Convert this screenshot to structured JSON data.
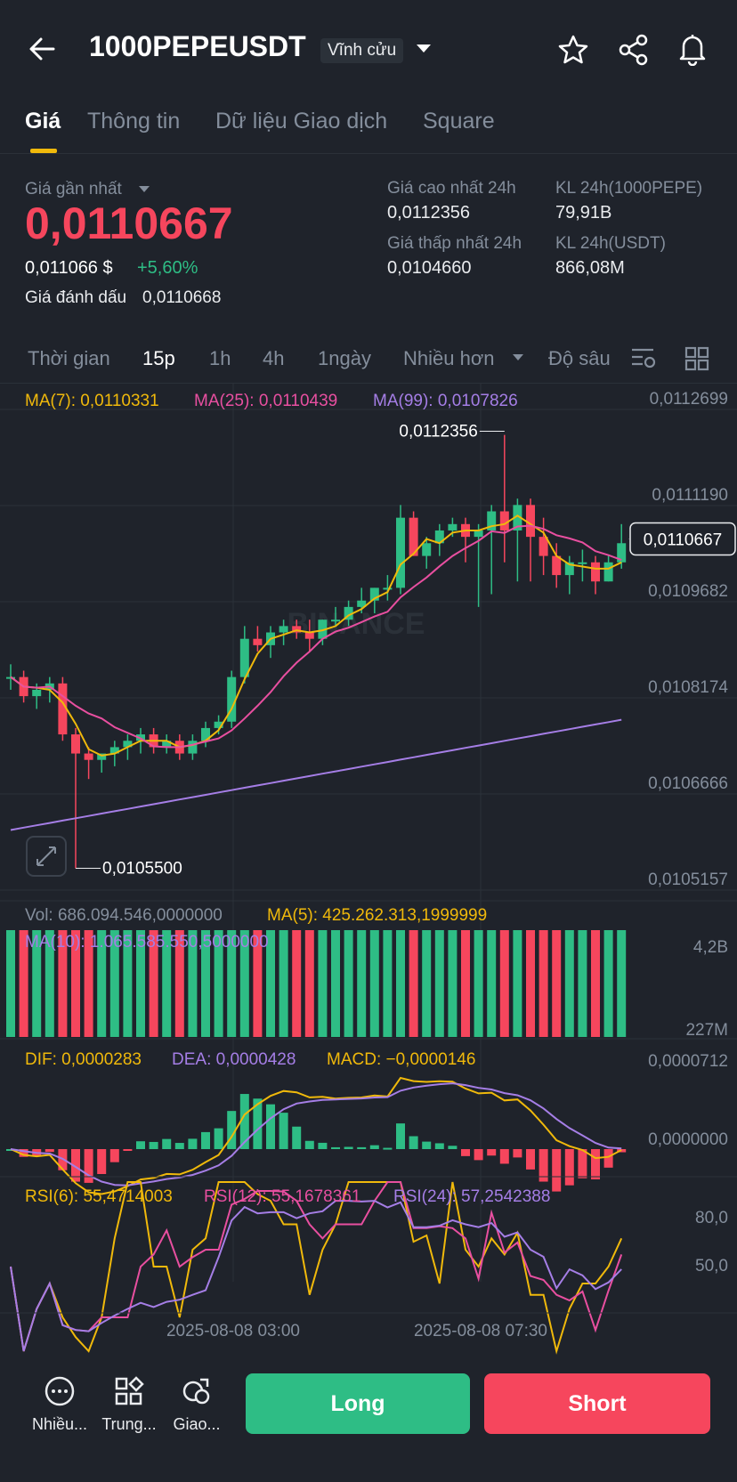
{
  "header": {
    "title": "1000PEPEUSDT",
    "badge": "Vĩnh cửu",
    "icons": [
      "back-arrow-icon",
      "chevron-down-icon",
      "star-icon",
      "share-icon",
      "bell-icon"
    ]
  },
  "tabs": [
    "Giá",
    "Thông tin",
    "Dữ liệu Giao dịch",
    "Square"
  ],
  "price": {
    "last_label": "Giá gần nhất",
    "last": "0,0110667",
    "usd": "0,011066 $",
    "change": "+5,60%",
    "mark_label": "Giá đánh dấu",
    "mark": "0,0110668",
    "high_label": "Giá cao nhất 24h",
    "high": "0,0112356",
    "low_label": "Giá thấp nhất 24h",
    "low": "0,0104660",
    "vol_base_label": "KL 24h(1000PEPE)",
    "vol_base": "79,91B",
    "vol_quote_label": "KL 24h(USDT)",
    "vol_quote": "866,08M"
  },
  "timeframes": [
    "Thời gian",
    "15p",
    "1h",
    "4h",
    "1ngày",
    "Nhiều hơn",
    "Độ sâu"
  ],
  "indicators": {
    "ma7": "MA(7): 0,0110331",
    "ma25": "MA(25): 0,0110439",
    "ma99": "MA(99): 0,0107826",
    "vol": "Vol: 686.094.546,0000000",
    "vol_ma5": "MA(5): 425.262.313,1999999",
    "vol_ma10": "MA(10): 1.065.585.550,5000000",
    "dif": "DIF: 0,0000283",
    "dea": "DEA: 0,0000428",
    "macd": "MACD: −0,0000146",
    "rsi6": "RSI(6): 55,4714003",
    "rsi12": "RSI(12): 55,1678361",
    "rsi24": "RSI(24): 57,2542388"
  },
  "colors": {
    "up": "#2ebd85",
    "down": "#f6465d",
    "accent": "#f0b90b",
    "bg": "#1f232b"
  },
  "chart_data": {
    "type": "candlestick",
    "y_ticks": [
      "0,0112699",
      "0,0111190",
      "0,0109682",
      "0,0108174",
      "0,0106666",
      "0,0105157"
    ],
    "ylim": [
      0.0105157,
      0.0112699
    ],
    "high_label": "0,0112356",
    "low_label": "0,0105500",
    "current_price_label": "0,0110667",
    "x_ticks": [
      "2025-08-08 03:00",
      "2025-08-08 07:30"
    ],
    "watermark": "BINANCE",
    "candles": [
      [
        0.01085,
        0.01087,
        0.01083,
        0.01085
      ],
      [
        0.01085,
        0.01086,
        0.01081,
        0.01082
      ],
      [
        0.01082,
        0.01084,
        0.0108,
        0.01083
      ],
      [
        0.01083,
        0.01085,
        0.01081,
        0.01084
      ],
      [
        0.01084,
        0.01085,
        0.01075,
        0.01076
      ],
      [
        0.01076,
        0.01077,
        0.01055,
        0.01073
      ],
      [
        0.01073,
        0.01074,
        0.01069,
        0.01072
      ],
      [
        0.01072,
        0.01073,
        0.0107,
        0.01073
      ],
      [
        0.01073,
        0.01075,
        0.01071,
        0.01074
      ],
      [
        0.01074,
        0.01076,
        0.01072,
        0.01075
      ],
      [
        0.01075,
        0.01077,
        0.01073,
        0.01076
      ],
      [
        0.01076,
        0.01077,
        0.01073,
        0.01074
      ],
      [
        0.01074,
        0.01076,
        0.01073,
        0.01075
      ],
      [
        0.01075,
        0.01076,
        0.01072,
        0.01073
      ],
      [
        0.01073,
        0.01076,
        0.01072,
        0.01075
      ],
      [
        0.01075,
        0.01078,
        0.01074,
        0.01077
      ],
      [
        0.01077,
        0.01079,
        0.01076,
        0.01078
      ],
      [
        0.01078,
        0.01086,
        0.01077,
        0.01085
      ],
      [
        0.01085,
        0.01093,
        0.01084,
        0.01091
      ],
      [
        0.01091,
        0.01093,
        0.01089,
        0.0109
      ],
      [
        0.0109,
        0.01093,
        0.01088,
        0.01092
      ],
      [
        0.01092,
        0.01094,
        0.0109,
        0.01093
      ],
      [
        0.01093,
        0.01094,
        0.01091,
        0.01092
      ],
      [
        0.01092,
        0.01094,
        0.01089,
        0.01091
      ],
      [
        0.01091,
        0.01094,
        0.0109,
        0.01094
      ],
      [
        0.01094,
        0.01096,
        0.01093,
        0.01094
      ],
      [
        0.01094,
        0.01097,
        0.01093,
        0.01096
      ],
      [
        0.01096,
        0.01099,
        0.01095,
        0.01097
      ],
      [
        0.01097,
        0.01099,
        0.01095,
        0.01099
      ],
      [
        0.01099,
        0.01101,
        0.01097,
        0.01099
      ],
      [
        0.01099,
        0.01112,
        0.01098,
        0.0111
      ],
      [
        0.0111,
        0.01111,
        0.01104,
        0.01104
      ],
      [
        0.01104,
        0.01107,
        0.01102,
        0.01106
      ],
      [
        0.01106,
        0.01109,
        0.01104,
        0.01108
      ],
      [
        0.01108,
        0.0111,
        0.01107,
        0.01109
      ],
      [
        0.01109,
        0.0111,
        0.01103,
        0.01107
      ],
      [
        0.01107,
        0.01109,
        0.01096,
        0.01108
      ],
      [
        0.01108,
        0.01112,
        0.01098,
        0.01111
      ],
      [
        0.01111,
        0.01123,
        0.01103,
        0.01108
      ],
      [
        0.01108,
        0.01113,
        0.011,
        0.01112
      ],
      [
        0.01112,
        0.01113,
        0.011,
        0.01107
      ],
      [
        0.01107,
        0.0111,
        0.01101,
        0.01104
      ],
      [
        0.01104,
        0.01106,
        0.01099,
        0.01101
      ],
      [
        0.01101,
        0.01104,
        0.01098,
        0.01103
      ],
      [
        0.01103,
        0.01105,
        0.011,
        0.01103
      ],
      [
        0.01103,
        0.01104,
        0.01098,
        0.011
      ],
      [
        0.011,
        0.01104,
        0.011,
        0.01103
      ],
      [
        0.01103,
        0.01109,
        0.01102,
        0.01106
      ]
    ]
  },
  "buttons": {
    "long": "Long",
    "short": "Short"
  },
  "bottom_nav": [
    "Nhiều...",
    "Trung...",
    "Giao..."
  ]
}
